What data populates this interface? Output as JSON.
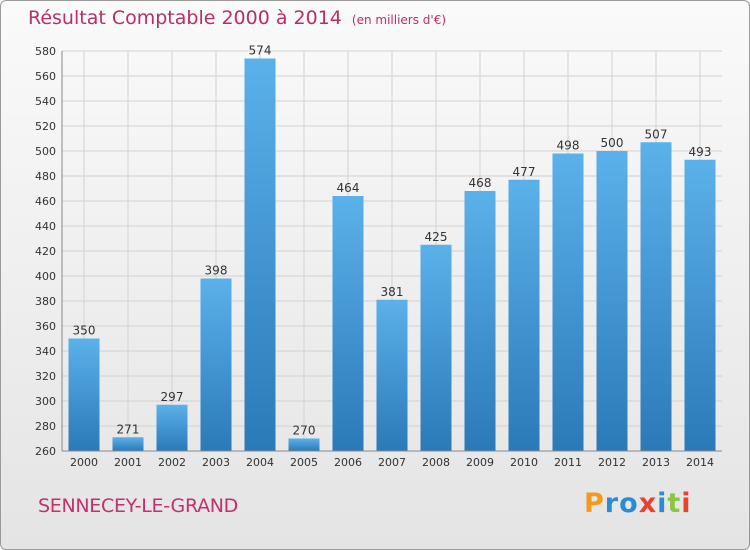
{
  "header": {
    "title": "Résultat Comptable 2000 à 2014",
    "subtitle": "(en milliers d'€)"
  },
  "footer": {
    "commune": "SENNECEY-LE-GRAND",
    "logo": "Proxiti"
  },
  "colors": {
    "bar_top": "#5bb1ea",
    "bar_bottom": "#2a7ab8",
    "title": "#b5306a",
    "logo": [
      "#f39a1e",
      "#2a8dd4",
      "#2a8dd4",
      "#e8432f",
      "#2a8dd4",
      "#8cc63f",
      "#e8432f"
    ]
  },
  "chart_data": {
    "type": "bar",
    "title": "Résultat Comptable 2000 à 2014",
    "subtitle": "(en milliers d'€)",
    "xlabel": "",
    "ylabel": "",
    "categories": [
      "2000",
      "2001",
      "2002",
      "2003",
      "2004",
      "2005",
      "2006",
      "2007",
      "2008",
      "2009",
      "2010",
      "2011",
      "2012",
      "2013",
      "2014"
    ],
    "values": [
      350,
      271,
      297,
      398,
      574,
      270,
      464,
      381,
      425,
      468,
      477,
      498,
      500,
      507,
      493
    ],
    "ylim": [
      260,
      580
    ],
    "yticks": [
      260,
      280,
      300,
      320,
      340,
      360,
      380,
      400,
      420,
      440,
      460,
      480,
      500,
      520,
      540,
      560,
      580
    ],
    "grid": true,
    "legend": "none"
  }
}
